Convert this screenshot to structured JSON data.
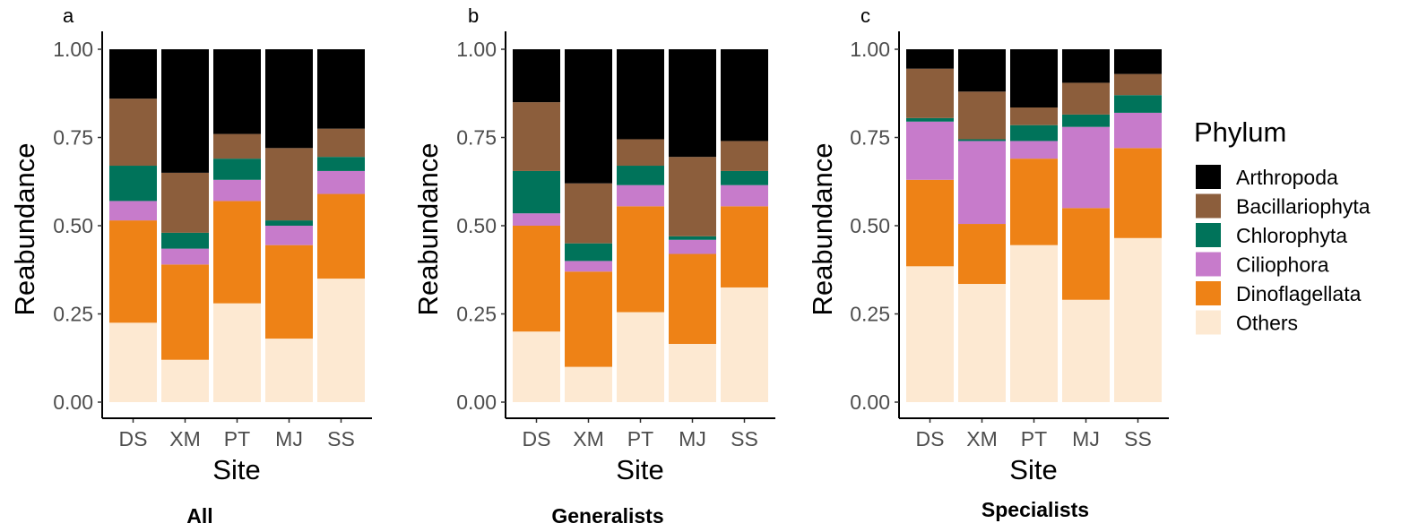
{
  "legend": {
    "title": "Phylum",
    "entries": [
      "Arthropoda",
      "Bacillariophyta",
      "Chlorophyta",
      "Ciliophora",
      "Dinoflagellata",
      "Others"
    ]
  },
  "colors": {
    "Arthropoda": "#000000",
    "Bacillariophyta": "#8c5e3c",
    "Chlorophyta": "#00735a",
    "Ciliophora": "#c77bcb",
    "Dinoflagellata": "#ee8216",
    "Others": "#fde9d2"
  },
  "chart_data": [
    {
      "type": "bar",
      "stacked": true,
      "panel_label": "a",
      "caption": "All",
      "xlabel": "Site",
      "ylabel": "Reabundance",
      "ylim": [
        0,
        1
      ],
      "yticks": [
        "0.00",
        "0.25",
        "0.50",
        "0.75",
        "1.00"
      ],
      "categories": [
        "DS",
        "XM",
        "PT",
        "MJ",
        "SS"
      ],
      "series": [
        {
          "name": "Others",
          "values": [
            0.225,
            0.12,
            0.28,
            0.18,
            0.35
          ]
        },
        {
          "name": "Dinoflagellata",
          "values": [
            0.29,
            0.27,
            0.29,
            0.265,
            0.24
          ]
        },
        {
          "name": "Ciliophora",
          "values": [
            0.055,
            0.045,
            0.06,
            0.055,
            0.065
          ]
        },
        {
          "name": "Chlorophyta",
          "values": [
            0.1,
            0.045,
            0.06,
            0.015,
            0.04
          ]
        },
        {
          "name": "Bacillariophyta",
          "values": [
            0.19,
            0.17,
            0.07,
            0.205,
            0.08
          ]
        },
        {
          "name": "Arthropoda",
          "values": [
            0.14,
            0.35,
            0.24,
            0.28,
            0.225
          ]
        }
      ]
    },
    {
      "type": "bar",
      "stacked": true,
      "panel_label": "b",
      "caption": "Generalists",
      "xlabel": "Site",
      "ylabel": "Reabundance",
      "ylim": [
        0,
        1
      ],
      "yticks": [
        "0.00",
        "0.25",
        "0.50",
        "0.75",
        "1.00"
      ],
      "categories": [
        "DS",
        "XM",
        "PT",
        "MJ",
        "SS"
      ],
      "series": [
        {
          "name": "Others",
          "values": [
            0.2,
            0.1,
            0.255,
            0.165,
            0.325
          ]
        },
        {
          "name": "Dinoflagellata",
          "values": [
            0.3,
            0.27,
            0.3,
            0.255,
            0.23
          ]
        },
        {
          "name": "Ciliophora",
          "values": [
            0.035,
            0.03,
            0.06,
            0.04,
            0.06
          ]
        },
        {
          "name": "Chlorophyta",
          "values": [
            0.12,
            0.05,
            0.055,
            0.01,
            0.04
          ]
        },
        {
          "name": "Bacillariophyta",
          "values": [
            0.195,
            0.17,
            0.075,
            0.225,
            0.085
          ]
        },
        {
          "name": "Arthropoda",
          "values": [
            0.15,
            0.38,
            0.255,
            0.305,
            0.26
          ]
        }
      ]
    },
    {
      "type": "bar",
      "stacked": true,
      "panel_label": "c",
      "caption": "Specialists",
      "xlabel": "Site",
      "ylabel": "Reabundance",
      "ylim": [
        0,
        1
      ],
      "yticks": [
        "0.00",
        "0.25",
        "0.50",
        "0.75",
        "1.00"
      ],
      "categories": [
        "DS",
        "XM",
        "PT",
        "MJ",
        "SS"
      ],
      "series": [
        {
          "name": "Others",
          "values": [
            0.385,
            0.335,
            0.445,
            0.29,
            0.465
          ]
        },
        {
          "name": "Dinoflagellata",
          "values": [
            0.245,
            0.17,
            0.245,
            0.26,
            0.255
          ]
        },
        {
          "name": "Ciliophora",
          "values": [
            0.165,
            0.235,
            0.05,
            0.23,
            0.1
          ]
        },
        {
          "name": "Chlorophyta",
          "values": [
            0.01,
            0.005,
            0.045,
            0.035,
            0.05
          ]
        },
        {
          "name": "Bacillariophyta",
          "values": [
            0.14,
            0.135,
            0.05,
            0.09,
            0.06
          ]
        },
        {
          "name": "Arthropoda",
          "values": [
            0.055,
            0.12,
            0.165,
            0.095,
            0.07
          ]
        }
      ]
    }
  ]
}
